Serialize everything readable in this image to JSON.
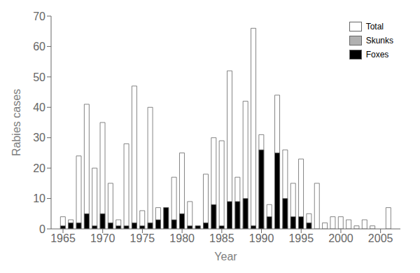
{
  "chart_data": {
    "type": "bar",
    "xlabel": "Year",
    "ylabel": "Rabies cases",
    "x": [
      1965,
      1966,
      1967,
      1968,
      1969,
      1970,
      1971,
      1972,
      1973,
      1974,
      1975,
      1976,
      1977,
      1978,
      1979,
      1980,
      1981,
      1982,
      1983,
      1984,
      1985,
      1986,
      1987,
      1988,
      1989,
      1990,
      1991,
      1992,
      1993,
      1994,
      1995,
      1996,
      1997,
      1998,
      1999,
      2000,
      2001,
      2002,
      2003,
      2004,
      2005,
      2006
    ],
    "series": [
      {
        "name": "Total",
        "color": "#ffffff",
        "values": [
          4,
          3,
          24,
          41,
          20,
          35,
          15,
          3,
          28,
          47,
          6,
          40,
          7,
          7,
          17,
          25,
          9,
          1,
          18,
          30,
          29,
          52,
          17,
          42,
          66,
          31,
          8,
          44,
          26,
          15,
          23,
          5,
          15,
          2,
          4,
          4,
          3,
          1,
          3,
          1,
          0,
          7
        ]
      },
      {
        "name": "Skunks",
        "color": "#b0b0b0",
        "values": [
          0,
          0,
          0,
          0,
          0,
          0,
          0,
          0,
          0,
          0,
          0,
          0,
          0,
          0,
          0,
          0,
          0,
          0,
          0,
          0,
          0,
          0,
          0,
          1,
          1,
          1,
          0,
          2,
          1,
          1,
          0,
          0,
          0,
          0,
          0,
          0,
          0,
          0,
          0,
          0,
          0,
          0
        ]
      },
      {
        "name": "Foxes",
        "color": "#000000",
        "values": [
          1,
          2,
          2,
          5,
          1,
          5,
          2,
          1,
          1,
          2,
          1,
          2,
          3,
          7,
          3,
          5,
          1,
          1,
          2,
          8,
          1,
          9,
          9,
          10,
          1,
          26,
          4,
          25,
          10,
          4,
          4,
          2,
          0,
          0,
          0,
          0,
          0,
          0,
          0,
          0,
          0,
          0
        ]
      }
    ],
    "xlim": [
      1963.5,
      2007.5
    ],
    "xticks": [
      1965,
      1970,
      1975,
      1980,
      1985,
      1990,
      1995,
      2000,
      2005
    ],
    "ylim": [
      0,
      70
    ],
    "yticks": [
      0,
      10,
      20,
      30,
      40,
      50,
      60,
      70
    ],
    "stacked": false,
    "grid": false,
    "legend": "upper right"
  }
}
